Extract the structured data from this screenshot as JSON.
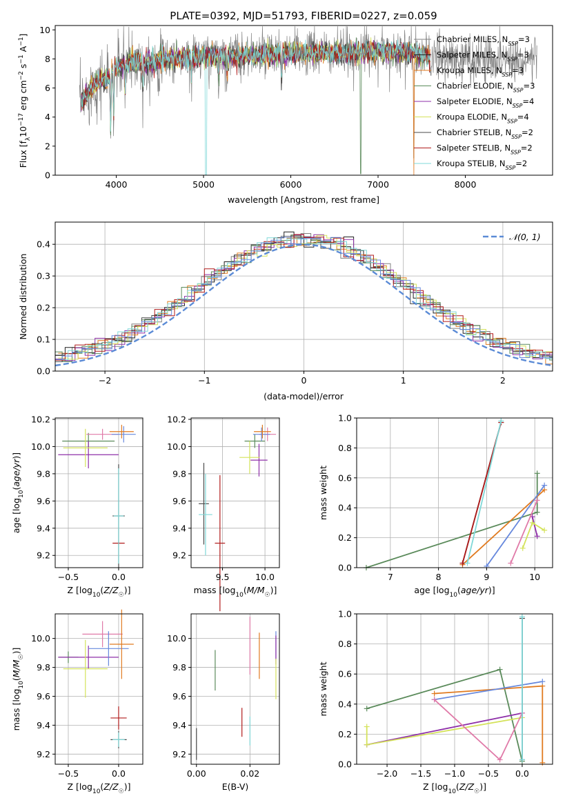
{
  "colors": {
    "Chabrier MILES": "#808080",
    "Salpeter MILES": "#1f1f1f",
    "Kroupa MILES": "#e07a1f",
    "Chabrier ELODIE": "#5a8a5a",
    "Salpeter ELODIE": "#8e2fa8",
    "Kroupa ELODIE": "#d4e25a",
    "Chabrier STELIB": "#4a4a4a",
    "Salpeter STELIB": "#b01a1a",
    "Kroupa STELIB": "#7fd8d8",
    "Kroupa MILES blue": "#6688dd",
    "pink": "#e07aa8",
    "normal": "#5b8bd6"
  },
  "chart_data": [
    {
      "type": "line",
      "title": "PLATE=0392, MJD=51793, FIBERID=0227, z=0.059",
      "xlabel": "wavelength [Angstrom, rest frame]",
      "ylabel": "Flux [f_λ10^-17 erg cm^-2 s^-1 A^-1]",
      "xlim": [
        3300,
        9000
      ],
      "ylim": [
        0,
        10.3
      ],
      "xticks": [
        "4000",
        "5000",
        "6000",
        "7000",
        "8000"
      ],
      "yticks": [
        "0",
        "2",
        "4",
        "6",
        "8",
        "10"
      ],
      "legend_position": "upper right",
      "legend": [
        {
          "name": "Chabrier MILES, N_SSP=3",
          "color": "#808080"
        },
        {
          "name": "Salpeter MILES, N_SSP=3",
          "color": "#1f1f1f"
        },
        {
          "name": "Kroupa MILES, N_SSP=3",
          "color": "#e07a1f"
        },
        {
          "name": "Chabrier ELODIE, N_SSP=3",
          "color": "#5a8a5a"
        },
        {
          "name": "Salpeter ELODIE, N_SSP=4",
          "color": "#8e2fa8"
        },
        {
          "name": "Kroupa ELODIE, N_SSP=4",
          "color": "#d4e25a"
        },
        {
          "name": "Chabrier STELIB, N_SSP=2",
          "color": "#4a4a4a"
        },
        {
          "name": "Salpeter STELIB, N_SSP=2",
          "color": "#b01a1a"
        },
        {
          "name": "Kroupa STELIB, N_SSP=2",
          "color": "#7fd8d8"
        }
      ],
      "continuum_x": [
        3600,
        3700,
        3800,
        3900,
        4000,
        4100,
        4200,
        4400,
        4600,
        4800,
        5000,
        5200,
        5400,
        5600,
        5800,
        6000,
        6200,
        6400,
        6600,
        6800,
        7000,
        7200,
        7400,
        7600,
        7800,
        8000,
        8200,
        8400,
        8600,
        8800
      ],
      "continuum_y": [
        5.0,
        5.9,
        6.5,
        6.7,
        7.4,
        7.7,
        7.8,
        7.8,
        8.0,
        8.1,
        8.2,
        8.2,
        8.2,
        8.3,
        8.3,
        8.4,
        8.4,
        8.4,
        8.4,
        8.5,
        8.5,
        8.5,
        8.4,
        8.1,
        8.0,
        8.0,
        8.0,
        8.0,
        8.0,
        8.0
      ],
      "absorption_lines": [
        {
          "x": 3935,
          "depth": 4.9
        },
        {
          "x": 3970,
          "depth": 4.5
        },
        {
          "x": 4102,
          "depth": 2.5
        },
        {
          "x": 4305,
          "depth": 2.6
        },
        {
          "x": 4862,
          "depth": 2.2
        },
        {
          "x": 5175,
          "depth": 2.0
        },
        {
          "x": 5270,
          "depth": 1.6
        },
        {
          "x": 5894,
          "depth": 2.6
        }
      ]
    },
    {
      "type": "bar",
      "title": "",
      "xlabel": "(data-model)/error",
      "ylabel": "Normed distribution",
      "xlim": [
        -2.5,
        2.5
      ],
      "ylim": [
        0,
        0.47
      ],
      "xticks": [
        "−2",
        "−1",
        "0",
        "1",
        "2"
      ],
      "yticks": [
        "0.0",
        "0.1",
        "0.2",
        "0.3",
        "0.4"
      ],
      "legend_position": "upper right",
      "legend": [
        {
          "name": "𝒩(0, 1)",
          "color": "#5b8bd6"
        }
      ],
      "bin_width": 0.1
    },
    {
      "type": "scatter",
      "xlabel": "Z [log10(Z/Z☉)]",
      "ylabel": "age  [log10(age/yr)]",
      "xlim": [
        -0.63,
        0.24
      ],
      "ylim": [
        9.11,
        10.21
      ],
      "xticks": [
        "−0.5",
        "0.0"
      ],
      "yticks": [
        "9.2",
        "9.4",
        "9.6",
        "9.8",
        "10.0",
        "10.2"
      ],
      "crosses": [
        {
          "x": -0.3,
          "xerr": 0.26,
          "y": 10.04,
          "yerr": 0.06,
          "color": "#5a8a5a"
        },
        {
          "x": -0.3,
          "xerr": 0.3,
          "y": 9.94,
          "yerr": 0.1,
          "color": "#8e2fa8"
        },
        {
          "x": -0.33,
          "xerr": 0.22,
          "y": 9.99,
          "yerr": 0.14,
          "color": "#d4e25a"
        },
        {
          "x": -0.16,
          "xerr": 0.16,
          "y": 10.09,
          "yerr": 0.04,
          "color": "#e07aa8"
        },
        {
          "x": 0.05,
          "xerr": 0.12,
          "y": 10.09,
          "yerr": 0.06,
          "color": "#6688dd"
        },
        {
          "x": 0.03,
          "xerr": 0.12,
          "y": 10.11,
          "yerr": 0.05,
          "color": "#e07a1f"
        },
        {
          "x": 0.0,
          "xerr": 0.06,
          "y": 9.49,
          "yerr": 0.38,
          "color": "#4a4a4a"
        },
        {
          "x": 0.0,
          "xerr": 0.06,
          "y": 9.29,
          "yerr": 0.01,
          "color": "#b01a1a"
        },
        {
          "x": 0.0,
          "xerr": 0.05,
          "y": 9.49,
          "yerr": 0.35,
          "color": "#7fd8d8"
        }
      ]
    },
    {
      "type": "scatter",
      "xlabel": "mass [log10(M/M☉)]",
      "ylabel": "",
      "xlim": [
        9.13,
        10.17
      ],
      "ylim": [
        9.11,
        10.21
      ],
      "xticks": [
        "9.5",
        "10.0"
      ],
      "yticks": [
        "9.2",
        "9.4",
        "9.6",
        "9.8",
        "10.0",
        "10.2"
      ],
      "crosses": [
        {
          "x": 9.28,
          "xerr": 0.06,
          "y": 9.58,
          "yerr": 0.3,
          "color": "#4a4a4a"
        },
        {
          "x": 9.47,
          "xerr": 0.06,
          "y": 9.29,
          "yerr": 0.5,
          "color": "#b01a1a"
        },
        {
          "x": 9.3,
          "xerr": 0.08,
          "y": 9.5,
          "yerr": 0.3,
          "color": "#7fd8d8"
        },
        {
          "x": 9.88,
          "xerr": 0.12,
          "y": 10.04,
          "yerr": 0.05,
          "color": "#5a8a5a"
        },
        {
          "x": 9.93,
          "xerr": 0.1,
          "y": 9.9,
          "yerr": 0.12,
          "color": "#8e2fa8"
        },
        {
          "x": 9.82,
          "xerr": 0.12,
          "y": 9.92,
          "yerr": 0.12,
          "color": "#d4e25a"
        },
        {
          "x": 10.03,
          "xerr": 0.1,
          "y": 10.09,
          "yerr": 0.05,
          "color": "#e07aa8"
        },
        {
          "x": 9.96,
          "xerr": 0.1,
          "y": 10.09,
          "yerr": 0.05,
          "color": "#6688dd"
        },
        {
          "x": 9.97,
          "xerr": 0.1,
          "y": 10.11,
          "yerr": 0.05,
          "color": "#e07a1f"
        }
      ]
    },
    {
      "type": "line",
      "xlabel": "age  [log10(age/yr)]",
      "ylabel": "mass weight",
      "xlim": [
        6.3,
        10.37
      ],
      "ylim": [
        0,
        1.0
      ],
      "xticks": [
        "7",
        "8",
        "9",
        "10"
      ],
      "yticks": [
        "0.0",
        "0.2",
        "0.4",
        "0.6",
        "0.8",
        "1.0"
      ],
      "series": [
        {
          "color": "#5a8a5a",
          "x": [
            6.5,
            10.05,
            10.05
          ],
          "y": [
            0.0,
            0.37,
            0.63
          ]
        },
        {
          "color": "#e07a1f",
          "x": [
            8.5,
            10.2
          ],
          "y": [
            0.02,
            0.52
          ]
        },
        {
          "color": "#6688dd",
          "x": [
            9.0,
            10.2
          ],
          "y": [
            0.01,
            0.55
          ]
        },
        {
          "color": "#8e2fa8",
          "x": [
            9.95,
            10.05
          ],
          "y": [
            0.34,
            0.21
          ]
        },
        {
          "color": "#d4e25a",
          "x": [
            9.75,
            9.95,
            10.2
          ],
          "y": [
            0.13,
            0.3,
            0.25
          ]
        },
        {
          "color": "#e07aa8",
          "x": [
            9.5,
            10.05
          ],
          "y": [
            0.03,
            0.45
          ]
        },
        {
          "color": "#4a4a4a",
          "x": [
            8.5,
            9.3
          ],
          "y": [
            0.03,
            0.97
          ]
        },
        {
          "color": "#b01a1a",
          "x": [
            8.5,
            9.3
          ],
          "y": [
            0.03,
            0.97
          ]
        },
        {
          "color": "#7fd8d8",
          "x": [
            8.6,
            9.3
          ],
          "y": [
            0.03,
            0.98
          ]
        }
      ]
    },
    {
      "type": "scatter",
      "xlabel": "Z [log10(Z/Z☉)]",
      "ylabel": "mass [log10(M/M☉)]",
      "xlim": [
        -0.63,
        0.24
      ],
      "ylim": [
        9.13,
        10.17
      ],
      "xticks": [
        "−0.5",
        "0.0"
      ],
      "yticks": [
        "9.2",
        "9.4",
        "9.6",
        "9.8",
        "10.0"
      ],
      "crosses": [
        {
          "x": -0.5,
          "xerr": 0.1,
          "y": 9.87,
          "yerr": 0.04,
          "color": "#5a8a5a"
        },
        {
          "x": -0.3,
          "xerr": 0.3,
          "y": 9.87,
          "yerr": 0.08,
          "color": "#8e2fa8"
        },
        {
          "x": -0.33,
          "xerr": 0.22,
          "y": 9.79,
          "yerr": 0.2,
          "color": "#d4e25a"
        },
        {
          "x": -0.16,
          "xerr": 0.2,
          "y": 10.03,
          "yerr": 0.09,
          "color": "#e07aa8"
        },
        {
          "x": -0.1,
          "xerr": 0.2,
          "y": 9.93,
          "yerr": 0.12,
          "color": "#6688dd"
        },
        {
          "x": 0.03,
          "xerr": 0.12,
          "y": 9.96,
          "yerr": 0.24,
          "color": "#e07a1f"
        },
        {
          "x": 0.0,
          "xerr": 0.08,
          "y": 9.3,
          "yerr": 0.06,
          "color": "#4a4a4a"
        },
        {
          "x": 0.0,
          "xerr": 0.08,
          "y": 9.45,
          "yerr": 0.08,
          "color": "#b01a1a"
        },
        {
          "x": 0.0,
          "xerr": 0.06,
          "y": 9.3,
          "yerr": 0.05,
          "color": "#7fd8d8"
        }
      ]
    },
    {
      "type": "scatter",
      "xlabel": "E(B-V)",
      "ylabel": "",
      "xlim": [
        -0.002,
        0.031
      ],
      "ylim": [
        9.13,
        10.17
      ],
      "xticks": [
        "0.00",
        "0.02"
      ],
      "yticks": [
        "9.2",
        "9.4",
        "9.6",
        "9.8",
        "10.0"
      ],
      "crosses": [
        {
          "x": 0.0,
          "y": 9.27,
          "yerr": 0.11,
          "color": "#4a4a4a"
        },
        {
          "x": 0.007,
          "y": 9.78,
          "yerr": 0.14,
          "color": "#5a8a5a"
        },
        {
          "x": 0.017,
          "y": 9.42,
          "yerr": 0.1,
          "color": "#b01a1a"
        },
        {
          "x": 0.02,
          "y": 9.36,
          "yerr": 0.1,
          "color": "#7fd8d8"
        },
        {
          "x": 0.02,
          "y": 9.95,
          "yerr": 0.2,
          "color": "#e07aa8"
        },
        {
          "x": 0.0235,
          "y": 9.88,
          "yerr": 0.16,
          "color": "#e07a1f"
        },
        {
          "x": 0.0297,
          "y": 9.95,
          "yerr": 0.1,
          "color": "#6688dd"
        },
        {
          "x": 0.0297,
          "y": 9.92,
          "yerr": 0.1,
          "color": "#8e2fa8"
        },
        {
          "x": 0.0297,
          "y": 9.72,
          "yerr": 0.14,
          "color": "#d4e25a"
        }
      ]
    },
    {
      "type": "line",
      "xlabel": "Z [log10(Z/Z☉)]",
      "ylabel": "mass weight",
      "xlim": [
        -2.45,
        0.45
      ],
      "ylim": [
        0,
        1.0
      ],
      "xticks": [
        "−2.0",
        "−1.5",
        "−1.0",
        "−0.5",
        "0.0"
      ],
      "yticks": [
        "0.0",
        "0.2",
        "0.4",
        "0.6",
        "0.8",
        "1.0"
      ],
      "series": [
        {
          "color": "#5a8a5a",
          "x": [
            -2.3,
            -0.33,
            0.0
          ],
          "y": [
            0.37,
            0.63,
            0.02
          ]
        },
        {
          "color": "#e07a1f",
          "x": [
            -1.3,
            0.3,
            0.3
          ],
          "y": [
            0.47,
            0.52,
            0.01
          ]
        },
        {
          "color": "#6688dd",
          "x": [
            -1.3,
            0.3
          ],
          "y": [
            0.43,
            0.55
          ]
        },
        {
          "color": "#8e2fa8",
          "x": [
            -2.3,
            0.0
          ],
          "y": [
            0.13,
            0.34
          ]
        },
        {
          "color": "#d4e25a",
          "x": [
            -2.3,
            -2.3,
            0.0
          ],
          "y": [
            0.25,
            0.13,
            0.31
          ]
        },
        {
          "color": "#e07aa8",
          "x": [
            -1.3,
            -0.33,
            0.0
          ],
          "y": [
            0.43,
            0.03,
            0.34
          ]
        },
        {
          "color": "#4a4a4a",
          "x": [
            0.0,
            0.0
          ],
          "y": [
            0.03,
            0.97
          ]
        },
        {
          "color": "#7fd8d8",
          "x": [
            0.0,
            0.0
          ],
          "y": [
            0.03,
            0.98
          ]
        }
      ]
    }
  ]
}
